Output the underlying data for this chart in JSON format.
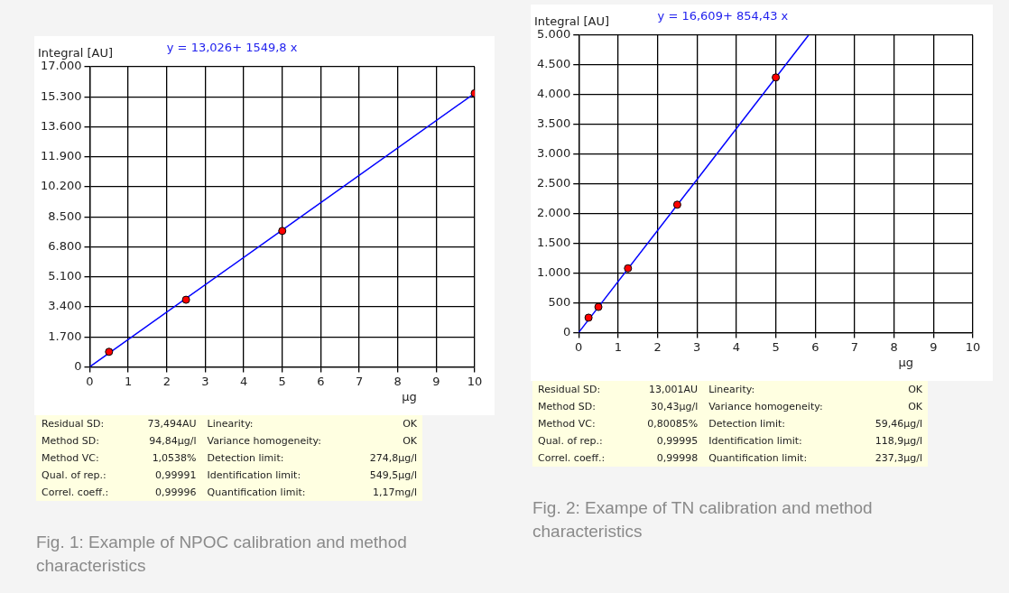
{
  "chart_data": [
    {
      "type": "scatter",
      "title": "y = 13,026+ 1549,8 x",
      "ylabel": "Integral [AU]",
      "xlabel": "µg",
      "series": [
        {
          "type": "scatter",
          "color": "#ff0000",
          "marker": "circle",
          "x": [
            0.5,
            2.5,
            5,
            10
          ],
          "values": [
            850,
            3800,
            7700,
            15500
          ]
        },
        {
          "type": "line",
          "color": "#0000ff",
          "x": [
            0,
            10
          ],
          "values": [
            0,
            15500
          ]
        }
      ],
      "xlim": [
        0,
        10
      ],
      "xticks": [
        0,
        1,
        2,
        3,
        4,
        5,
        6,
        7,
        8,
        9,
        10
      ],
      "ylim": [
        0,
        17000
      ],
      "yticks": [
        {
          "value": 0,
          "label": "0"
        },
        {
          "value": 1700,
          "label": "1.700"
        },
        {
          "value": 3400,
          "label": "3.400"
        },
        {
          "value": 5100,
          "label": "5.100"
        },
        {
          "value": 6800,
          "label": "6.800"
        },
        {
          "value": 8500,
          "label": "8.500"
        },
        {
          "value": 10200,
          "label": "10.200"
        },
        {
          "value": 11900,
          "label": "11.900"
        },
        {
          "value": 13600,
          "label": "13.600"
        },
        {
          "value": 15300,
          "label": "15.300"
        },
        {
          "value": 17000,
          "label": "17.000"
        }
      ],
      "grid": true,
      "legend": false,
      "line_style": "solid",
      "annotations": [
        "Residual SD:",
        "73,494AU",
        "Linearity:",
        "OK",
        "Method SD:",
        "94,84µg/l",
        "Variance homogeneity:",
        "OK",
        "Method VC:",
        "1,0538%",
        "Detection limit:",
        "274,8µg/l",
        "Qual. of rep.:",
        "0,99991",
        "Identification limit:",
        "549,5µg/l",
        "Correl. coeff.:",
        "0,99996",
        "Quantification limit:",
        "1,17mg/l",
        "Fig. 1: Example of NPOC calibration and  method characteristics"
      ]
    },
    {
      "type": "scatter",
      "title": "y = 16,609+ 854,43 x",
      "ylabel": "Integral [AU]",
      "xlabel": "µg",
      "series": [
        {
          "type": "scatter",
          "color": "#ff0000",
          "marker": "circle",
          "x": [
            0.25,
            0.5,
            1.25,
            2.5,
            5
          ],
          "values": [
            250,
            430,
            1080,
            2150,
            4290
          ]
        },
        {
          "type": "line",
          "color": "#0000ff",
          "x": [
            0,
            5.83
          ],
          "values": [
            0,
            5000
          ]
        }
      ],
      "xlim": [
        0,
        10
      ],
      "xticks": [
        0,
        1,
        2,
        3,
        4,
        5,
        6,
        7,
        8,
        9,
        10
      ],
      "ylim": [
        0,
        5000
      ],
      "yticks": [
        {
          "value": 0,
          "label": "0"
        },
        {
          "value": 500,
          "label": "500"
        },
        {
          "value": 1000,
          "label": "1.000"
        },
        {
          "value": 1500,
          "label": "1.500"
        },
        {
          "value": 2000,
          "label": "2.000"
        },
        {
          "value": 2500,
          "label": "2.500"
        },
        {
          "value": 3000,
          "label": "3.000"
        },
        {
          "value": 3500,
          "label": "3.500"
        },
        {
          "value": 4000,
          "label": "4.000"
        },
        {
          "value": 4500,
          "label": "4.500"
        },
        {
          "value": 5000,
          "label": "5.000"
        }
      ],
      "grid": true,
      "legend": false,
      "line_style": "solid",
      "annotations": [
        "Residual SD:",
        "13,001AU",
        "Linearity:",
        "OK",
        "Method SD:",
        "30,43µg/l",
        "Variance homogeneity:",
        "OK",
        "Method VC:",
        "0,80085%",
        "Detection limit:",
        "59,46µg/l",
        "Qual. of rep.:",
        "0,99995",
        "Identification limit:",
        "118,9µg/l",
        "Correl. coeff.:",
        "0,99998",
        "Quantification limit:",
        "237,3µg/l",
        "Fig. 2: Exampe of TN calibration and  method characteristics"
      ]
    }
  ]
}
